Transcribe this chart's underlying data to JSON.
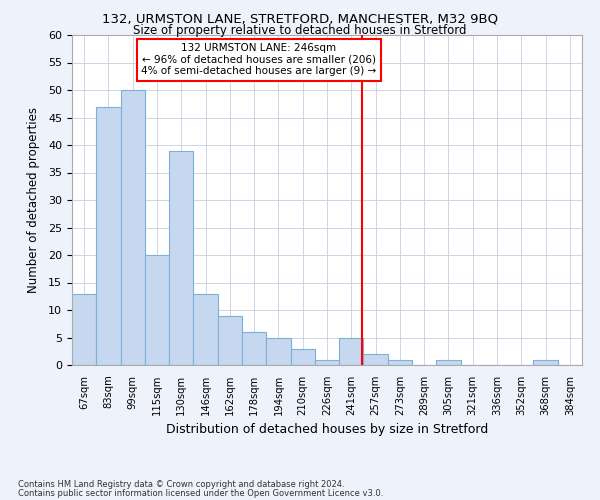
{
  "title1": "132, URMSTON LANE, STRETFORD, MANCHESTER, M32 9BQ",
  "title2": "Size of property relative to detached houses in Stretford",
  "xlabel": "Distribution of detached houses by size in Stretford",
  "ylabel": "Number of detached properties",
  "categories": [
    "67sqm",
    "83sqm",
    "99sqm",
    "115sqm",
    "130sqm",
    "146sqm",
    "162sqm",
    "178sqm",
    "194sqm",
    "210sqm",
    "226sqm",
    "241sqm",
    "257sqm",
    "273sqm",
    "289sqm",
    "305sqm",
    "321sqm",
    "336sqm",
    "352sqm",
    "368sqm",
    "384sqm"
  ],
  "values": [
    13,
    47,
    50,
    20,
    39,
    13,
    9,
    6,
    5,
    3,
    1,
    5,
    2,
    1,
    0,
    1,
    0,
    0,
    0,
    1,
    0
  ],
  "bar_color": "#c5d8f0",
  "bar_edge_color": "#7fafd4",
  "annotation_line1": "132 URMSTON LANE: 246sqm",
  "annotation_line2": "← 96% of detached houses are smaller (206)",
  "annotation_line3": "4% of semi-detached houses are larger (9) →",
  "ylim": [
    0,
    60
  ],
  "yticks": [
    0,
    5,
    10,
    15,
    20,
    25,
    30,
    35,
    40,
    45,
    50,
    55,
    60
  ],
  "footnote1": "Contains HM Land Registry data © Crown copyright and database right 2024.",
  "footnote2": "Contains public sector information licensed under the Open Government Licence v3.0.",
  "bg_color": "#eef2fb",
  "plot_bg_color": "#ffffff",
  "grid_color": "#c8cfe0"
}
